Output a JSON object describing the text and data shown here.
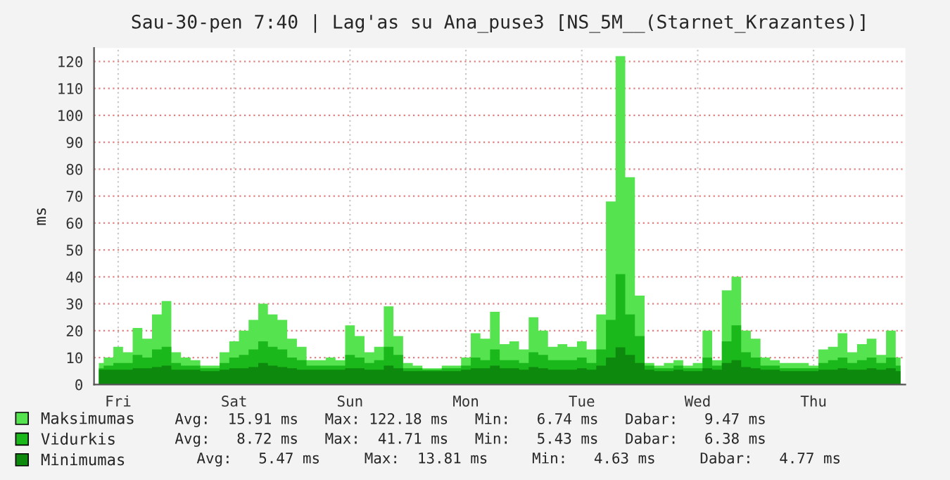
{
  "chart_data": {
    "type": "area",
    "title": "Sau-30-pen 7:40 | Lag'as su Ana_puse3 [NS_5M__(Starnet_Krazantes)]",
    "ylabel": "ms",
    "categories": [
      null,
      null,
      "Fri",
      null,
      null,
      null,
      null,
      null,
      null,
      null,
      null,
      null,
      null,
      null,
      "Sat",
      null,
      null,
      null,
      null,
      null,
      null,
      null,
      null,
      null,
      null,
      null,
      "Sun",
      null,
      null,
      null,
      null,
      null,
      null,
      null,
      null,
      null,
      null,
      null,
      "Mon",
      null,
      null,
      null,
      null,
      null,
      null,
      null,
      null,
      null,
      null,
      null,
      "Tue",
      null,
      null,
      null,
      null,
      null,
      null,
      null,
      null,
      null,
      null,
      null,
      "Wed",
      null,
      null,
      null,
      null,
      null,
      null,
      null,
      null,
      null,
      null,
      null,
      "Thu",
      null,
      null,
      null,
      null,
      null,
      null,
      null,
      null,
      null
    ],
    "series": [
      {
        "name": "Maksimumas",
        "color": "#55e34f",
        "values": [
          8,
          10,
          14,
          12,
          21,
          17,
          26,
          31,
          12,
          10,
          9,
          7,
          7,
          12,
          16,
          20,
          24,
          30,
          26,
          24,
          17,
          14,
          9,
          9,
          10,
          9,
          22,
          18,
          12,
          14,
          29,
          18,
          8,
          7,
          6,
          6,
          7,
          7,
          10,
          19,
          17,
          27,
          15,
          16,
          13,
          25,
          20,
          14,
          15,
          14,
          16,
          13,
          26,
          68,
          122,
          77,
          33,
          8,
          7,
          8,
          9,
          7,
          8,
          20,
          9,
          35,
          40,
          20,
          17,
          10,
          9,
          8,
          8,
          8,
          7,
          13,
          14,
          19,
          12,
          15,
          17,
          11,
          20,
          10
        ]
      },
      {
        "name": "Vidurkis",
        "color": "#1ab81a",
        "values": [
          6,
          7,
          8,
          8,
          11,
          10,
          13,
          14,
          8,
          7,
          7,
          6,
          6,
          8,
          10,
          11,
          13,
          16,
          14,
          13,
          10,
          9,
          7,
          7,
          7,
          7,
          11,
          10,
          8,
          9,
          14,
          11,
          6,
          6,
          5.5,
          5.5,
          6,
          6,
          7,
          10,
          9,
          13,
          9,
          9,
          8,
          12,
          11,
          9,
          9,
          9,
          10,
          8,
          13,
          24,
          41,
          26,
          18,
          7,
          6,
          6,
          7,
          6,
          6,
          10,
          7,
          16,
          22,
          12,
          10,
          7,
          7,
          6,
          6,
          6,
          6,
          8,
          9,
          10,
          8,
          9,
          10,
          8,
          10,
          7
        ]
      },
      {
        "name": "Minimumas",
        "color": "#0d8a0d",
        "values": [
          5.5,
          5.5,
          5.5,
          5.5,
          6,
          6,
          6.5,
          7,
          5.5,
          5.5,
          5.5,
          5,
          5,
          5.5,
          6,
          6,
          6.5,
          8,
          7,
          6.5,
          6,
          5.5,
          5.5,
          5.5,
          5.5,
          5.5,
          6,
          6,
          5.5,
          5.5,
          7,
          6,
          5,
          5,
          5,
          5,
          5,
          5,
          5.5,
          6,
          6,
          7,
          6,
          6,
          5.5,
          6.5,
          6,
          5.5,
          5.5,
          5.5,
          6,
          5.5,
          7,
          10,
          13.8,
          11,
          8,
          5.5,
          5,
          5,
          5.5,
          5,
          5,
          6,
          5.5,
          8,
          9,
          6.5,
          6,
          5.5,
          5.5,
          5,
          5,
          5,
          5,
          5.5,
          5.5,
          6,
          5.5,
          5.5,
          6,
          5.5,
          6,
          5
        ]
      }
    ],
    "ylim": [
      0,
      125
    ],
    "yticks": [
      0,
      10,
      20,
      30,
      40,
      50,
      60,
      70,
      80,
      90,
      100,
      110,
      120
    ],
    "grid": true,
    "legend": "bottom",
    "annotations": [
      "Avg:  15.91 ms   Max: 122.18 ms   Min:   6.74 ms   Dabar:   9.47 ms",
      "Avg:   8.72 ms   Max:  41.71 ms   Min:   5.43 ms   Dabar:   6.38 ms",
      "Avg:   5.47 ms     Max:  13.81 ms     Min:   4.63 ms     Dabar:   4.77 ms"
    ]
  }
}
